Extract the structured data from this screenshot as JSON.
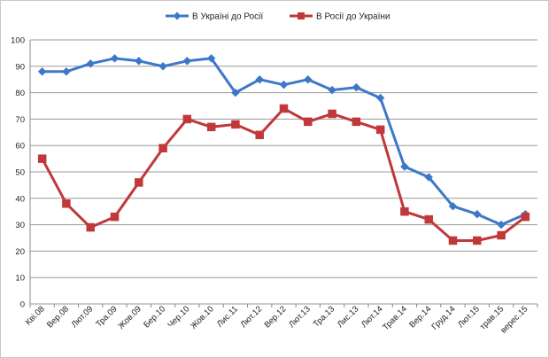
{
  "chart_data": {
    "type": "line",
    "categories": [
      "Кві.08",
      "Вер.08",
      "Лют.09",
      "Тра.09",
      "Жов.09",
      "Бер.10",
      "Чер.10",
      "Жов.10",
      "Лис.11",
      "Лют.12",
      "Вер.12",
      "Лют.13",
      "Тра.13",
      "Лис.13",
      "Лют.14",
      "Трав.14",
      "Вер.14",
      "Груд.14",
      "Лют.15",
      "трав.15",
      "верес.15"
    ],
    "series": [
      {
        "name": "В Україні до Росії",
        "color": "#3d78c8",
        "marker": "diamond",
        "values": [
          88,
          88,
          91,
          93,
          92,
          90,
          92,
          93,
          80,
          85,
          83,
          85,
          81,
          82,
          78,
          52,
          48,
          37,
          34,
          30,
          34
        ]
      },
      {
        "name": "В Росії до України",
        "color": "#c0383a",
        "marker": "square",
        "values": [
          55,
          38,
          29,
          33,
          46,
          59,
          70,
          67,
          68,
          64,
          74,
          69,
          72,
          69,
          66,
          35,
          32,
          24,
          24,
          26,
          33
        ]
      }
    ],
    "ylim": [
      0,
      100
    ],
    "yticks": [
      0,
      10,
      20,
      30,
      40,
      50,
      60,
      70,
      80,
      90,
      100
    ],
    "grid": true,
    "legend_position": "top"
  }
}
